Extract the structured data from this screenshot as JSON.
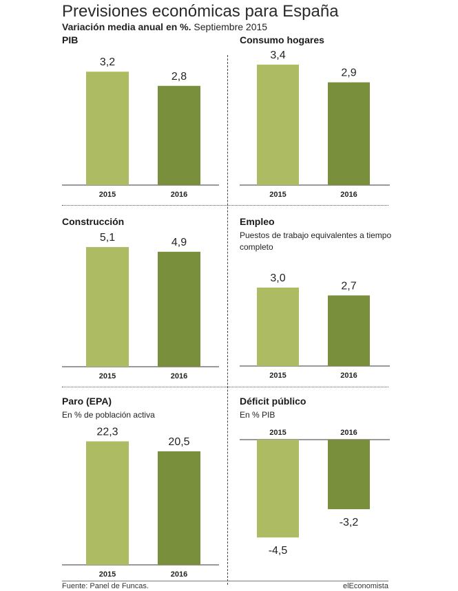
{
  "header": {
    "title": "Previsiones económicas para España",
    "subtitle_bold": "Variación media anual en %.",
    "subtitle_rest": " Septiembre 2015"
  },
  "footer": {
    "source": "Fuente: Panel de Funcas.",
    "brand": "elEconomista"
  },
  "colors": {
    "series_2015": "#adbb62",
    "series_2016": "#7a8f3c"
  },
  "chart_data": [
    {
      "type": "bar",
      "title": "PIB",
      "note": "",
      "categories": [
        "2015",
        "2016"
      ],
      "values": [
        3.2,
        2.8
      ],
      "labels": [
        "3,2",
        "2,8"
      ]
    },
    {
      "type": "bar",
      "title": "Consumo hogares",
      "note": "",
      "categories": [
        "2015",
        "2016"
      ],
      "values": [
        3.4,
        2.9
      ],
      "labels": [
        "3,4",
        "2,9"
      ]
    },
    {
      "type": "bar",
      "title": "Construcción",
      "note": "",
      "categories": [
        "2015",
        "2016"
      ],
      "values": [
        5.1,
        4.9
      ],
      "labels": [
        "5,1",
        "4,9"
      ]
    },
    {
      "type": "bar",
      "title": "Empleo",
      "note": "Puestos de trabajo equivalentes a tiempo completo",
      "categories": [
        "2015",
        "2016"
      ],
      "values": [
        3.0,
        2.7
      ],
      "labels": [
        "3,0",
        "2,7"
      ]
    },
    {
      "type": "bar",
      "title": "Paro (EPA)",
      "note": "En % de población activa",
      "categories": [
        "2015",
        "2016"
      ],
      "values": [
        22.3,
        20.5
      ],
      "labels": [
        "22,3",
        "20,5"
      ]
    },
    {
      "type": "bar",
      "title": "Déficit público",
      "note": "En % PIB",
      "categories": [
        "2015",
        "2016"
      ],
      "values": [
        -4.5,
        -3.2
      ],
      "labels": [
        "-4,5",
        "-3,2"
      ]
    }
  ]
}
